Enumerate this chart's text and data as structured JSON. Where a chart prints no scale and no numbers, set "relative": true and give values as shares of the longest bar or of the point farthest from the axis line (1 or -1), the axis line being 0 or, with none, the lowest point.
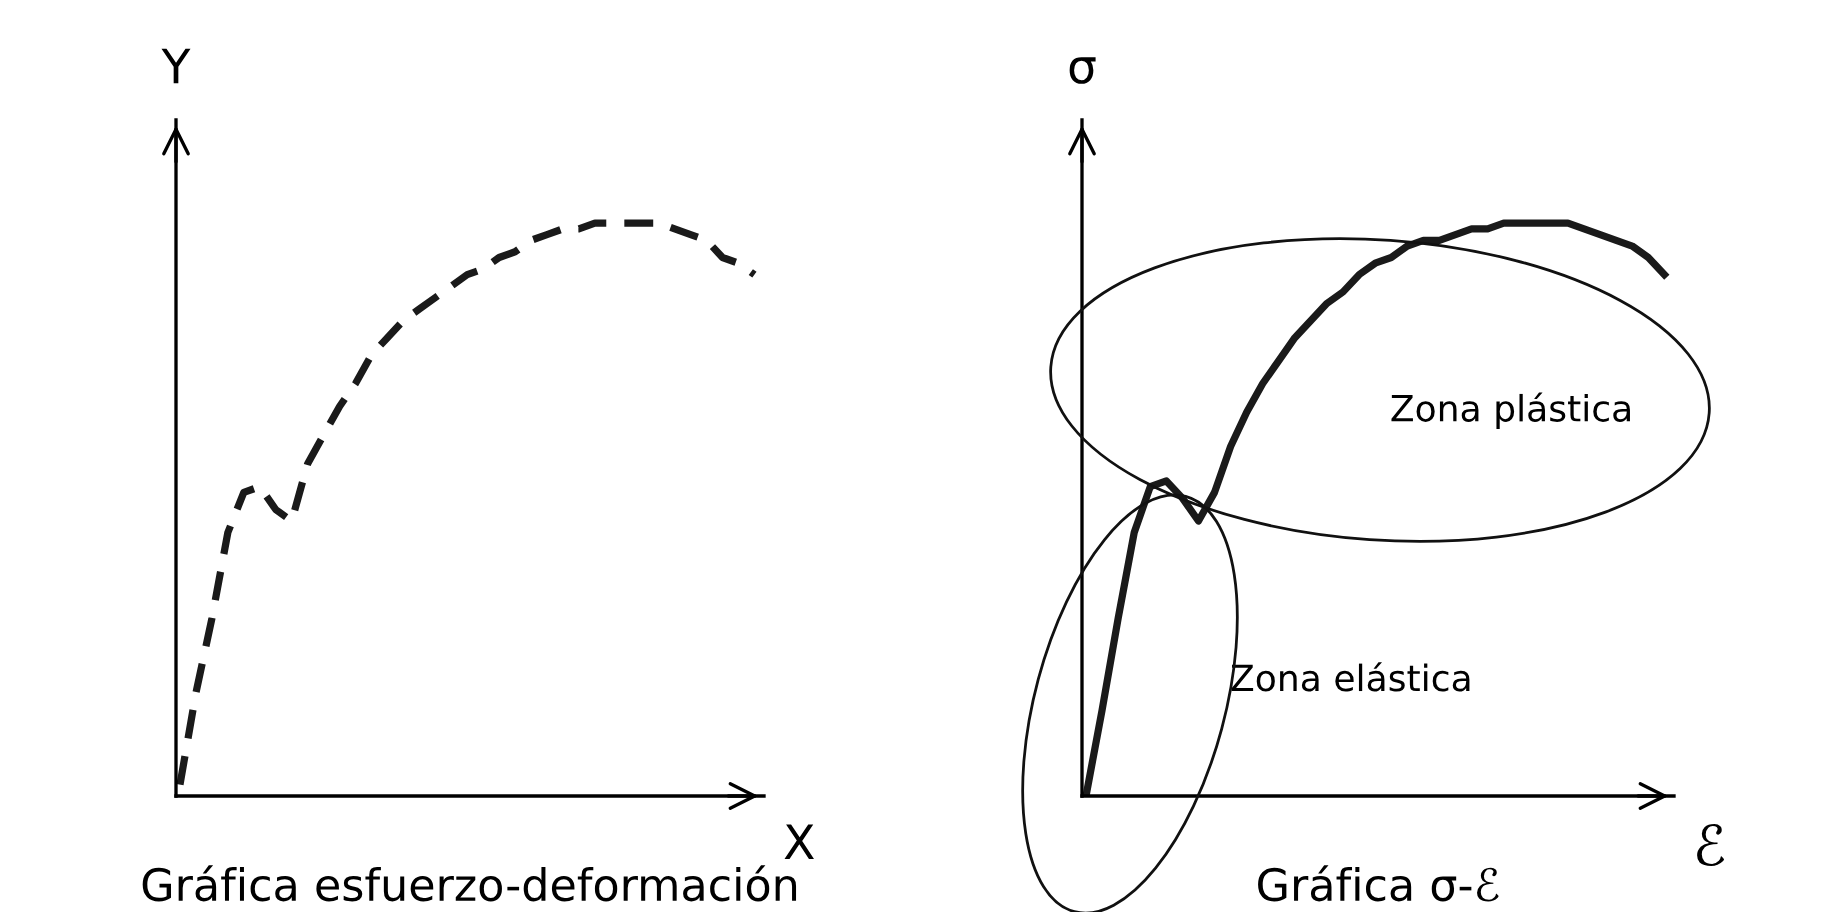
{
  "chart_data": [
    {
      "type": "line",
      "title": "Gráfica esfuerzo-deformación",
      "xlabel": "X",
      "ylabel": "Y",
      "relative": true,
      "line_style": "dashed",
      "categories": [
        null,
        null,
        null,
        null,
        null,
        null,
        null,
        null,
        null,
        null,
        null,
        null,
        null,
        null,
        null,
        null,
        null,
        null,
        null,
        null,
        null,
        null,
        null,
        null,
        null,
        null,
        null,
        null,
        null,
        null,
        null,
        null,
        null,
        null,
        null,
        null,
        null
      ],
      "series": [
        {
          "color": "#1a1a1a",
          "values": [
            0.02,
            0.18,
            0.31,
            0.46,
            0.53,
            0.54,
            0.5,
            0.48,
            0.58,
            0.63,
            0.68,
            0.72,
            0.77,
            0.8,
            0.83,
            0.85,
            0.87,
            0.89,
            0.91,
            0.92,
            0.94,
            0.95,
            0.97,
            0.98,
            0.99,
            0.99,
            1.0,
            1.0,
            1.0,
            1.0,
            1.0,
            0.99,
            0.98,
            0.97,
            0.94,
            0.93,
            0.91
          ]
        }
      ]
    },
    {
      "type": "line",
      "title": "Gráfica σ-ℰ",
      "xlabel": "ℰ",
      "ylabel": "σ",
      "relative": true,
      "line_style": "solid",
      "categories": [
        null,
        null,
        null,
        null,
        null,
        null,
        null,
        null,
        null,
        null,
        null,
        null,
        null,
        null,
        null,
        null,
        null,
        null,
        null,
        null,
        null,
        null,
        null,
        null,
        null,
        null,
        null,
        null,
        null,
        null,
        null,
        null,
        null,
        null,
        null,
        null,
        null
      ],
      "series": [
        {
          "color": "#1a1a1a",
          "values": [
            0,
            0.15,
            0.31,
            0.46,
            0.54,
            0.55,
            0.52,
            0.48,
            0.53,
            0.61,
            0.67,
            0.72,
            0.76,
            0.8,
            0.83,
            0.86,
            0.88,
            0.91,
            0.93,
            0.94,
            0.96,
            0.97,
            0.97,
            0.98,
            0.99,
            0.99,
            1.0,
            1.0,
            1.0,
            1.0,
            1.0,
            0.99,
            0.98,
            0.97,
            0.96,
            0.94,
            0.91
          ]
        }
      ],
      "annotations": [
        "Zona plástica",
        "Zona elástica"
      ]
    }
  ]
}
